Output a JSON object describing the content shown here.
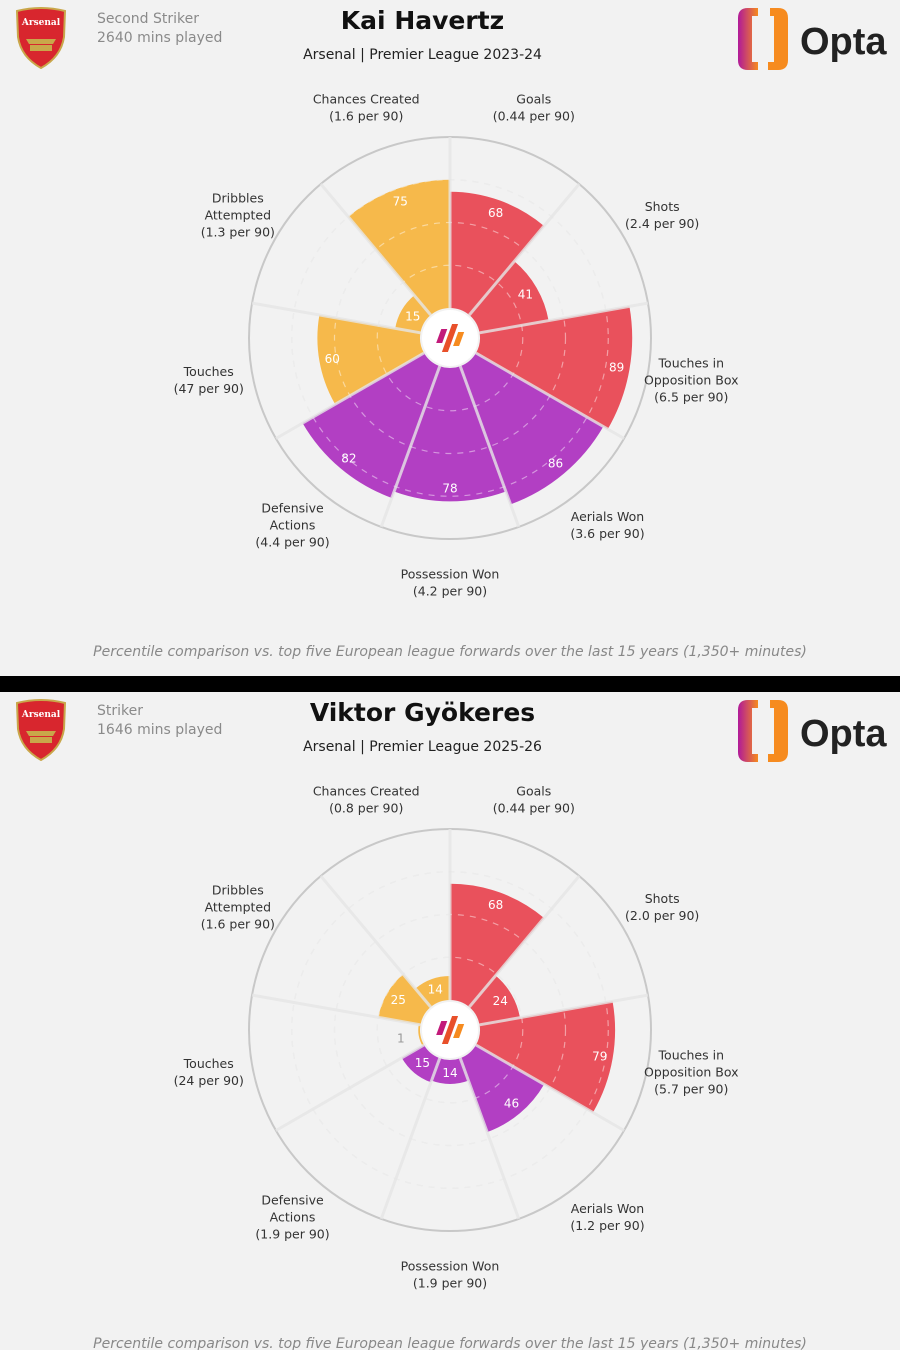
{
  "colors": {
    "attacking": "#e9515c",
    "defending": "#b23fc3",
    "possession": "#f6b94b",
    "background": "#f2f2f2"
  },
  "icons": {
    "club": "arsenal-crest",
    "brand": "opta-logo",
    "center": "opta-mark"
  },
  "brand": "Opta",
  "club_badge_text": "Arsenal",
  "chart_data": [
    {
      "type": "pie",
      "variant": "polar-percentile",
      "player": "Kai Havertz",
      "position": "Second Striker",
      "minutes": "2640 mins played",
      "subtitle": "Arsenal | Premier League 2023-24",
      "footnote": "Percentile comparison vs. top five European league forwards over the last 15 years (1,350+ minutes)",
      "rlim": [
        0,
        100
      ],
      "categories": [
        {
          "name": "Goals",
          "per90": "(0.44 per 90)",
          "value": 68,
          "group": "attacking"
        },
        {
          "name": "Shots",
          "per90": "(2.4 per 90)",
          "value": 41,
          "group": "attacking"
        },
        {
          "name": "Touches in Opposition Box",
          "per90": "(6.5 per 90)",
          "value": 89,
          "group": "attacking"
        },
        {
          "name": "Aerials Won",
          "per90": "(3.6 per 90)",
          "value": 86,
          "group": "defending"
        },
        {
          "name": "Possession Won",
          "per90": "(4.2 per 90)",
          "value": 78,
          "group": "defending"
        },
        {
          "name": "Defensive Actions",
          "per90": "(4.4 per 90)",
          "value": 82,
          "group": "defending"
        },
        {
          "name": "Touches",
          "per90": "(47 per 90)",
          "value": 60,
          "group": "possession"
        },
        {
          "name": "Dribbles Attempted",
          "per90": "(1.3 per 90)",
          "value": 15,
          "group": "possession"
        },
        {
          "name": "Chances Created",
          "per90": "(1.6 per 90)",
          "value": 75,
          "group": "possession"
        }
      ]
    },
    {
      "type": "pie",
      "variant": "polar-percentile",
      "player": "Viktor Gyökeres",
      "position": "Striker",
      "minutes": "1646 mins played",
      "subtitle": "Arsenal | Premier League 2025-26",
      "footnote": "Percentile comparison vs. top five European league forwards over the last 15 years (1,350+ minutes)",
      "rlim": [
        0,
        100
      ],
      "categories": [
        {
          "name": "Goals",
          "per90": "(0.44 per 90)",
          "value": 68,
          "group": "attacking"
        },
        {
          "name": "Shots",
          "per90": "(2.0 per 90)",
          "value": 24,
          "group": "attacking"
        },
        {
          "name": "Touches in Opposition Box",
          "per90": "(5.7 per 90)",
          "value": 79,
          "group": "attacking"
        },
        {
          "name": "Aerials Won",
          "per90": "(1.2 per 90)",
          "value": 46,
          "group": "defending"
        },
        {
          "name": "Possession Won",
          "per90": "(1.9 per 90)",
          "value": 14,
          "group": "defending"
        },
        {
          "name": "Defensive Actions",
          "per90": "(1.9 per 90)",
          "value": 15,
          "group": "defending"
        },
        {
          "name": "Touches",
          "per90": "(24 per 90)",
          "value": 1,
          "group": "possession"
        },
        {
          "name": "Dribbles Attempted",
          "per90": "(1.6 per 90)",
          "value": 25,
          "group": "possession"
        },
        {
          "name": "Chances Created",
          "per90": "(0.8 per 90)",
          "value": 14,
          "group": "possession"
        }
      ]
    }
  ]
}
